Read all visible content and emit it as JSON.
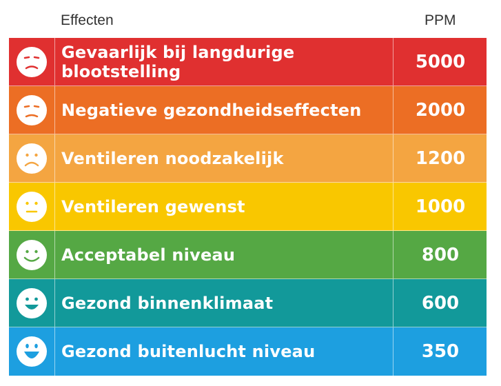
{
  "header": {
    "effect_label": "Effecten",
    "ppm_label": "PPM"
  },
  "rows": [
    {
      "label": "Gevaarlijk bij langdurige blootstelling",
      "ppm": "5000",
      "color": "#e03030",
      "face": "very-sad-face-icon"
    },
    {
      "label": "Negatieve gezondheidseffecten",
      "ppm": "2000",
      "color": "#ec6e24",
      "face": "sad-face-icon"
    },
    {
      "label": "Ventileren noodzakelijk",
      "ppm": "1200",
      "color": "#f4a541",
      "face": "frown-face-icon"
    },
    {
      "label": "Ventileren gewenst",
      "ppm": "1000",
      "color": "#f9c700",
      "face": "neutral-face-icon"
    },
    {
      "label": "Acceptabel niveau",
      "ppm": "800",
      "color": "#55a844",
      "face": "smile-face-icon"
    },
    {
      "label": "Gezond binnenklimaat",
      "ppm": "600",
      "color": "#12999a",
      "face": "happy-face-icon"
    },
    {
      "label": "Gezond buitenlucht niveau",
      "ppm": "350",
      "color": "#1d9fe0",
      "face": "very-happy-face-icon"
    }
  ]
}
